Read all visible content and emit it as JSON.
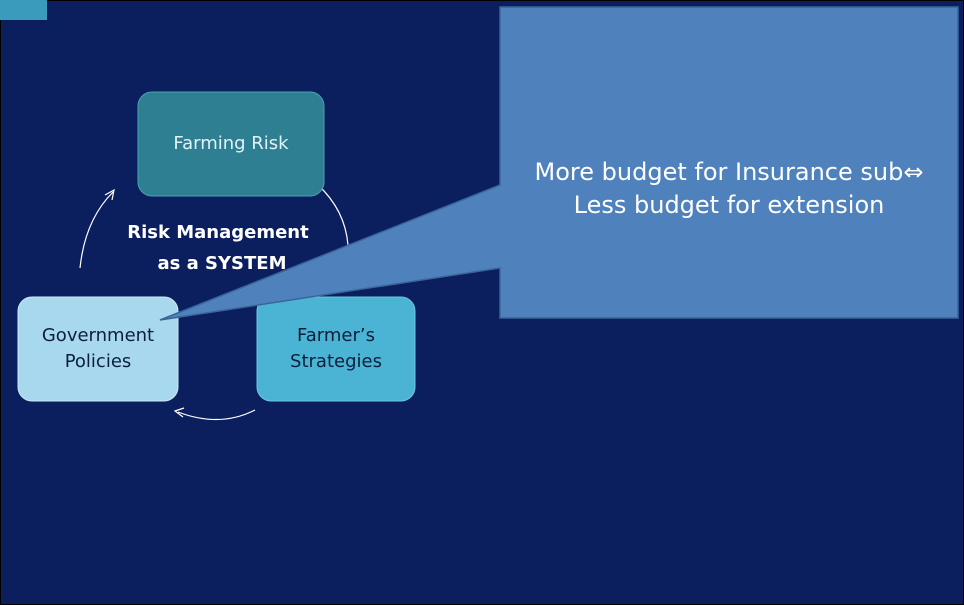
{
  "nodes": [
    {
      "lines": [
        "Farming Risk"
      ]
    },
    {
      "lines": [
        "Government",
        "Policies"
      ]
    },
    {
      "lines": [
        "Farmer’s",
        "Strategies"
      ]
    }
  ],
  "center_label": [
    "Risk Management",
    "as a SYSTEM"
  ],
  "callout": [
    "More budget for Insurance sub⇔",
    "Less budget for extension"
  ]
}
